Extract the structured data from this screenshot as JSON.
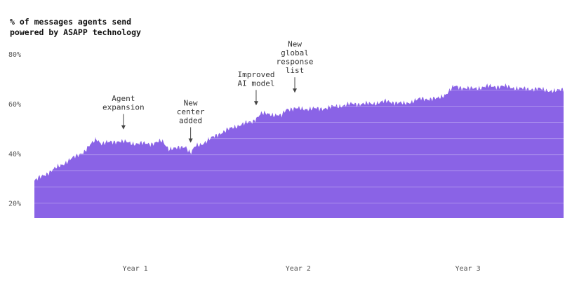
{
  "chart_data": {
    "type": "area",
    "title_lines": [
      "% of messages agents send",
      "powered by ASAPP technology"
    ],
    "xlabel": "",
    "ylabel": "",
    "ylim": [
      14,
      82
    ],
    "xlim": [
      0,
      3.15
    ],
    "y_ticks": [
      {
        "value": 20,
        "label": "20%"
      },
      {
        "value": 40,
        "label": "40%"
      },
      {
        "value": 60,
        "label": "60%"
      },
      {
        "value": 80,
        "label": "80%"
      }
    ],
    "x_ticks": [
      {
        "value": 0.6,
        "label": "Year 1"
      },
      {
        "value": 1.57,
        "label": "Year 2"
      },
      {
        "value": 2.58,
        "label": "Year 3"
      }
    ],
    "color": "#8a63e6",
    "grid": true,
    "series": [
      {
        "x": [
          0,
          0.1,
          0.2,
          0.3,
          0.37,
          0.4,
          0.5,
          0.6,
          0.7,
          0.76,
          0.8,
          0.85,
          0.9,
          0.93,
          0.96,
          1.0,
          1.1,
          1.2,
          1.3,
          1.35,
          1.4,
          1.47,
          1.5,
          1.6,
          1.7,
          1.8,
          1.9,
          2.0,
          2.1,
          2.2,
          2.3,
          2.4,
          2.45,
          2.5,
          2.6,
          2.7,
          2.8,
          2.9,
          3.0,
          3.1,
          3.15
        ],
        "values": [
          29,
          33,
          37,
          41,
          46,
          44,
          45,
          44,
          44,
          45,
          42,
          42,
          43,
          40,
          43,
          44,
          48,
          51,
          53,
          56,
          56,
          55,
          58,
          58,
          58,
          59,
          60,
          60,
          61,
          60,
          62,
          62,
          64,
          67,
          66,
          67,
          67,
          66,
          66,
          65,
          66
        ]
      }
    ],
    "annotations": [
      {
        "x": 0.53,
        "y_top": 48.8,
        "lines": [
          "Agent",
          "expansion"
        ]
      },
      {
        "x": 0.93,
        "y_top": 43.5,
        "lines": [
          "New",
          "center",
          "added"
        ]
      },
      {
        "x": 1.32,
        "y_top": 58.5,
        "lines": [
          "Improved",
          "AI model"
        ]
      },
      {
        "x": 1.55,
        "y_top": 63.6,
        "lines": [
          "New",
          "global",
          "response",
          "list"
        ]
      }
    ]
  }
}
